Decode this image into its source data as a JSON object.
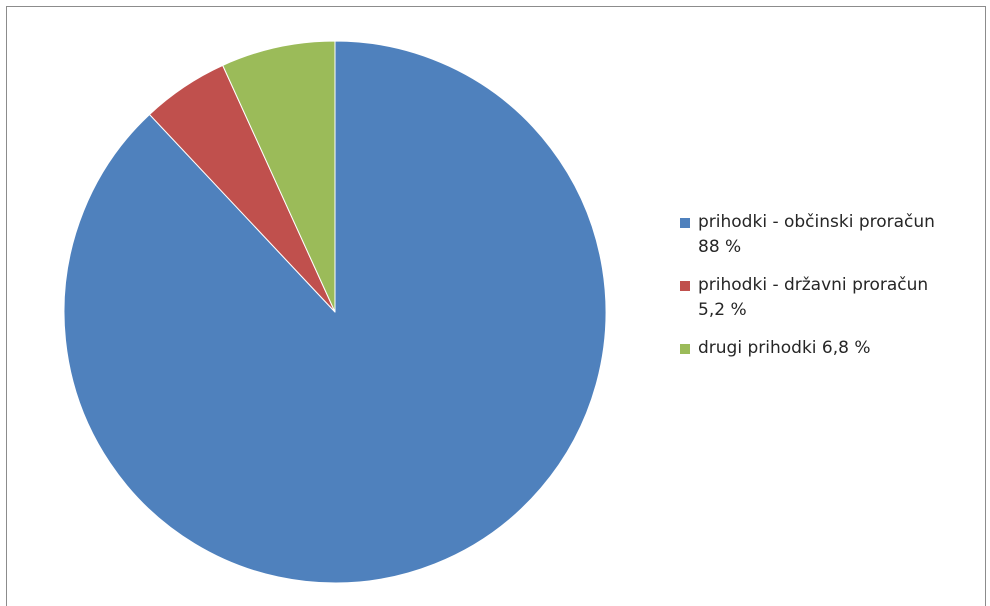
{
  "chart_data": {
    "type": "pie",
    "title": "",
    "start_angle_deg": 0,
    "direction": "clockwise",
    "slices": [
      {
        "label": "prihodki - občinski proračun 88 %",
        "value": 88,
        "color": "#4F81BD"
      },
      {
        "label": "prihodki - državni proračun 5,2 %",
        "value": 5.2,
        "color": "#C0504D"
      },
      {
        "label": "drugi prihodki 6,8 %",
        "value": 6.8,
        "color": "#9BBB59"
      }
    ],
    "legend": {
      "position": "right",
      "items": [
        {
          "line1": "prihodki - občinski proračun",
          "line2": "88 %",
          "color": "#4F81BD"
        },
        {
          "line1": "prihodki - državni proračun",
          "line2": "5,2 %",
          "color": "#C0504D"
        },
        {
          "line1": "drugi prihodki 6,8 %",
          "line2": "",
          "color": "#9BBB59"
        }
      ]
    }
  }
}
